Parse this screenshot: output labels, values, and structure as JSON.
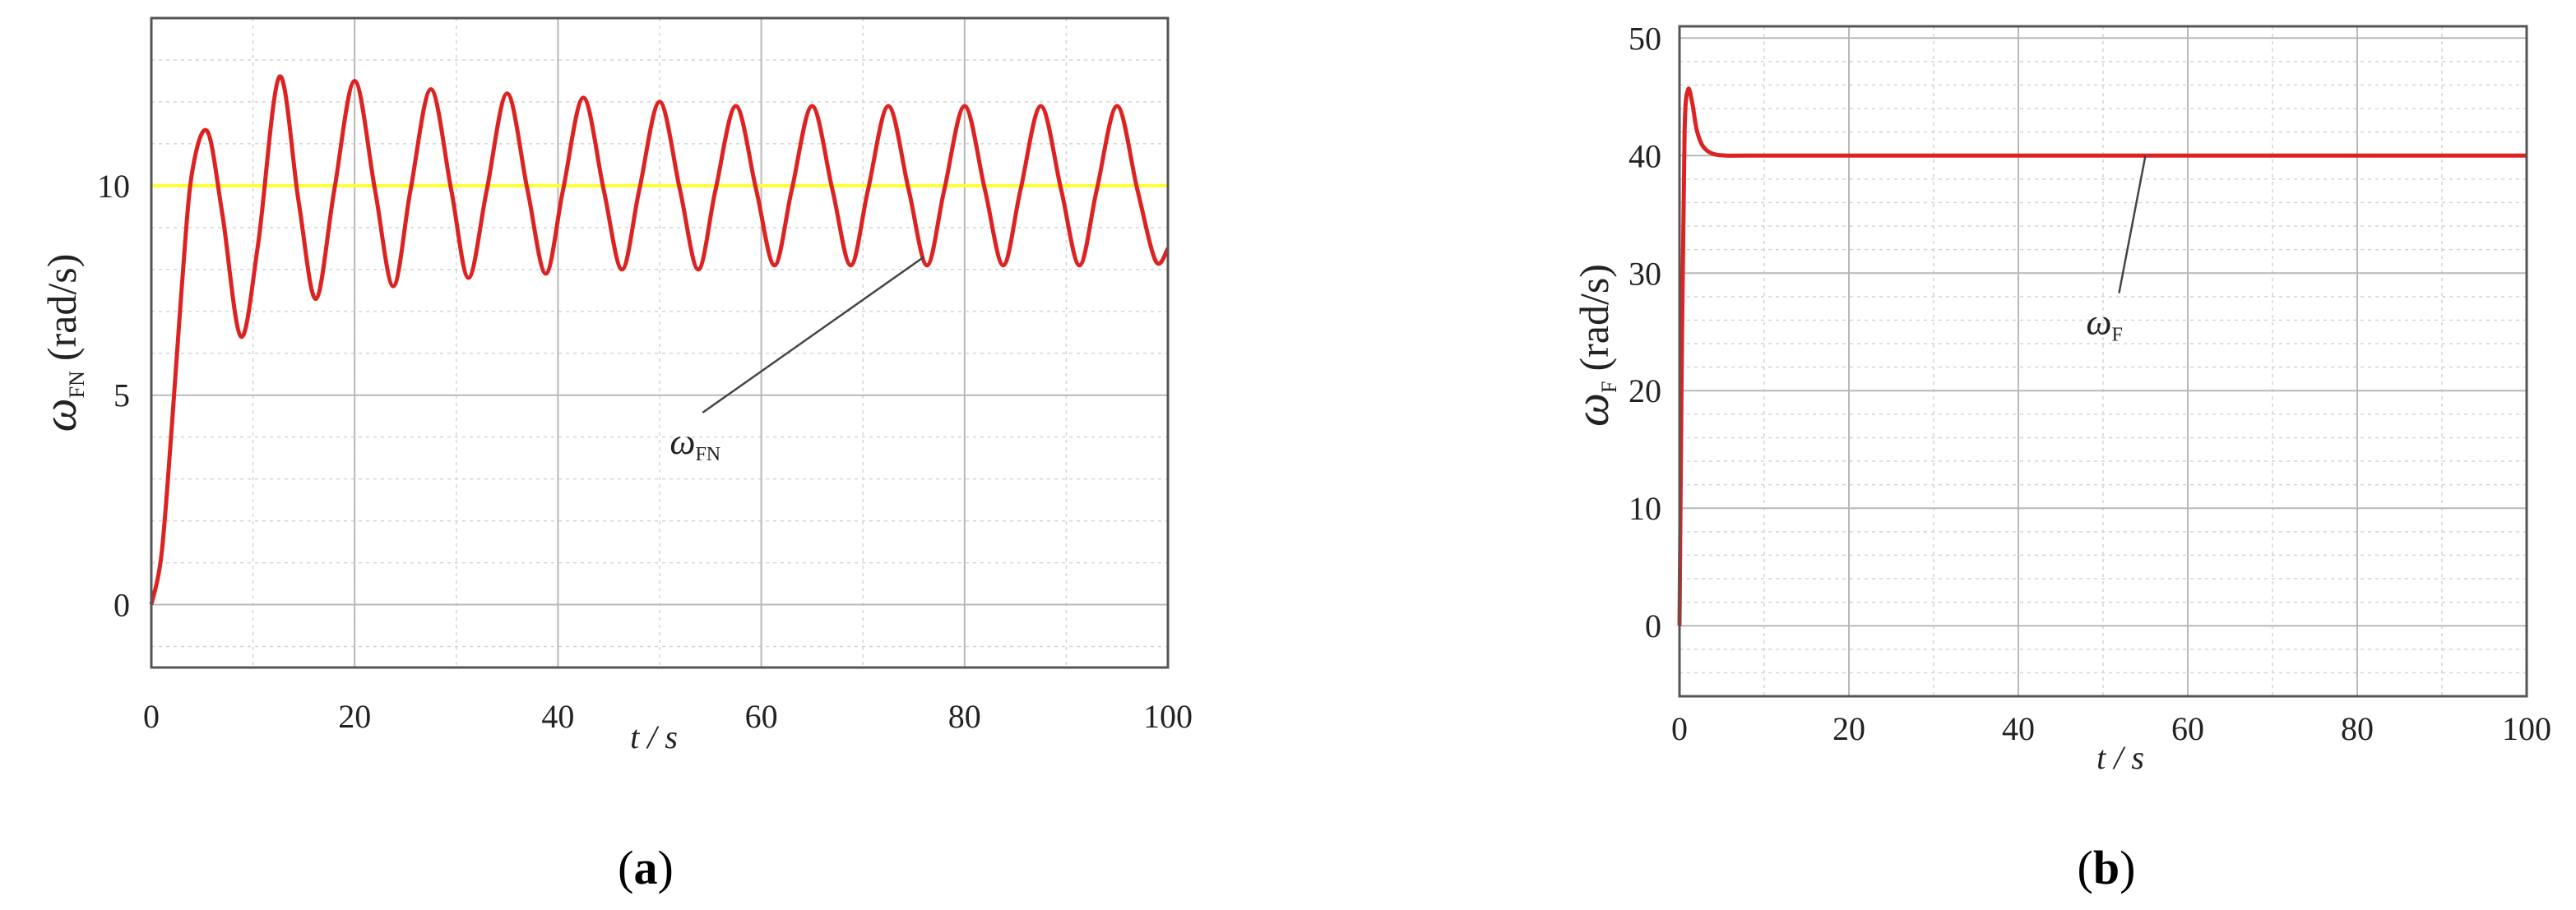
{
  "chart_data": [
    {
      "type": "line",
      "panel_label": "a",
      "xlabel": "t / s",
      "ylabel_symbol": "ω",
      "ylabel_sub": "FN",
      "ylabel_unit": "(rad/s)",
      "xlim": [
        0,
        100
      ],
      "ylim": [
        -1.5,
        14
      ],
      "x_ticks": [
        0,
        20,
        40,
        60,
        80,
        100
      ],
      "y_ticks": [
        0,
        5,
        10
      ],
      "grid": true,
      "reference_line": {
        "y": 10,
        "color": "#ffff33"
      },
      "series": [
        {
          "color": "#dd2222",
          "x": [
            0,
            1,
            2,
            3,
            4,
            5.5,
            7,
            8.8,
            10.5,
            12.6,
            14.5,
            16.2,
            18,
            20,
            22,
            23.8,
            25.5,
            27.5,
            29.5,
            31.2,
            33,
            35,
            37,
            38.8,
            40.5,
            42.5,
            44.5,
            46.3,
            48,
            50,
            52,
            53.8,
            55.5,
            57.5,
            59.5,
            61.3,
            63,
            65,
            67,
            68.8,
            70.5,
            72.5,
            74.5,
            76.3,
            78,
            80,
            82,
            83.8,
            85.5,
            87.5,
            89.5,
            91.3,
            93,
            95,
            97,
            98.8,
            100
          ],
          "y": [
            0,
            1.2,
            4.2,
            7.6,
            10.3,
            11.3,
            9.3,
            6.4,
            8.6,
            12.6,
            9.6,
            7.3,
            9.9,
            12.5,
            9.9,
            7.6,
            9.9,
            12.3,
            9.9,
            7.8,
            9.9,
            12.2,
            9.9,
            7.9,
            9.9,
            12.1,
            9.9,
            8.0,
            9.9,
            12.0,
            9.9,
            8.0,
            9.9,
            11.9,
            9.9,
            8.1,
            9.9,
            11.9,
            9.9,
            8.1,
            9.9,
            11.9,
            9.9,
            8.1,
            9.9,
            11.9,
            9.9,
            8.1,
            9.9,
            11.9,
            9.9,
            8.1,
            9.9,
            11.9,
            9.9,
            8.2,
            8.5
          ]
        }
      ],
      "annotation": {
        "symbol": "ω",
        "sub": "FN",
        "point_x": 76,
        "point_y": 8.3,
        "label_x": 51,
        "label_y": 3.8
      }
    },
    {
      "type": "line",
      "panel_label": "b",
      "xlabel": "t / s",
      "ylabel_symbol": "ω",
      "ylabel_sub": "F",
      "ylabel_unit": "(rad/s)",
      "xlim": [
        0,
        100
      ],
      "ylim": [
        -6,
        51
      ],
      "x_ticks": [
        0,
        20,
        40,
        60,
        80,
        100
      ],
      "y_ticks": [
        0,
        10,
        20,
        30,
        40,
        50
      ],
      "grid": true,
      "series": [
        {
          "color": "#dd2222",
          "x": [
            0,
            0.3,
            0.6,
            1.0,
            1.5,
            2.0,
            2.6,
            3.3,
            4.2,
            5.5,
            8,
            20,
            40,
            60,
            80,
            100
          ],
          "y": [
            0,
            25,
            42,
            45.6,
            44.5,
            42.3,
            41.0,
            40.4,
            40.1,
            40.0,
            40.0,
            40.0,
            40.0,
            40.0,
            40.0,
            40.0
          ]
        }
      ],
      "annotation": {
        "symbol": "ω",
        "sub": "F",
        "point_x": 55,
        "point_y": 40,
        "label_x": 48,
        "label_y": 25.5
      }
    }
  ]
}
